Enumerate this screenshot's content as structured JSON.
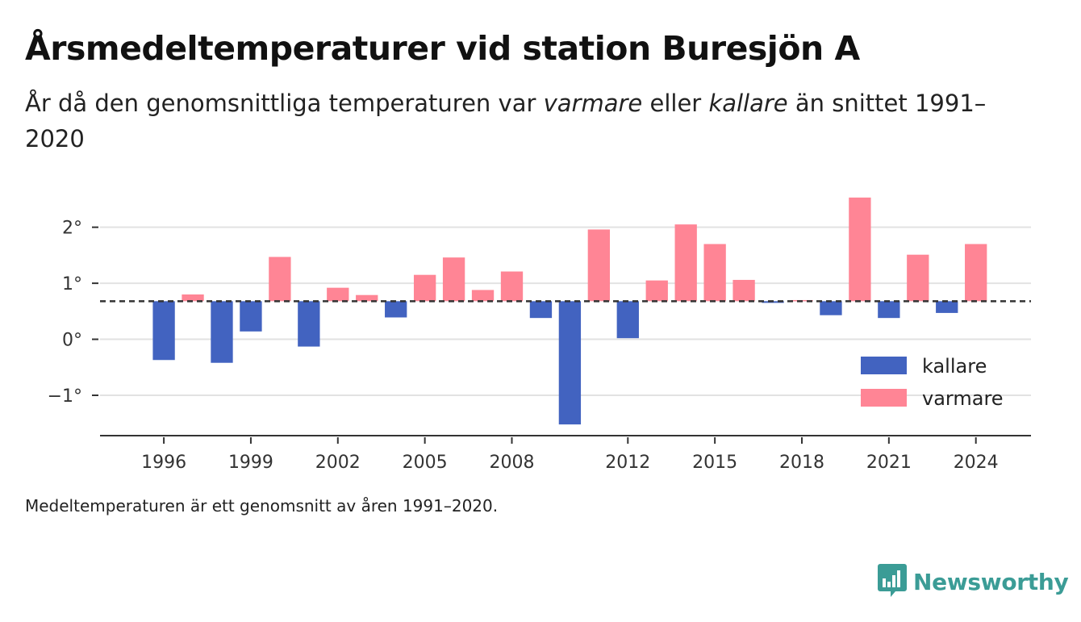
{
  "title": "Årsmedeltemperaturer vid station Buresjön A",
  "subtitle": {
    "part1": "År då den genomsnittliga temperaturen var ",
    "warm_word": "varmare",
    "part2": " eller ",
    "cold_word": "kallare",
    "part3": " än snittet 1991–2020"
  },
  "footnote": "Medeltemperaturen är ett genomsnitt av åren 1991–2020.",
  "brand": {
    "name": "Newsworthy",
    "icon": "newsworthy-logo-icon",
    "color": "#3b9c96"
  },
  "colors": {
    "cold": "#4263c0",
    "warm": "#ff8595",
    "grid": "#e2e2e2",
    "reference_line": "#333333",
    "axis": "#333333"
  },
  "chart_data": {
    "type": "bar",
    "title": "Årsmedeltemperaturer vid station Buresjön A",
    "xlabel": "",
    "ylabel": "",
    "reference_value": 0.68,
    "reference_label": "",
    "ylim": [
      -1.72,
      2.6
    ],
    "xlim": [
      1993.8,
      2025.9
    ],
    "yticks": [
      {
        "value": -1,
        "label": "−1°"
      },
      {
        "value": 0,
        "label": "0°"
      },
      {
        "value": 1,
        "label": "1°"
      },
      {
        "value": 2,
        "label": "2°"
      }
    ],
    "xticks": [
      {
        "value": 1996,
        "label": "1996"
      },
      {
        "value": 1999,
        "label": "1999"
      },
      {
        "value": 2002,
        "label": "2002"
      },
      {
        "value": 2005,
        "label": "2005"
      },
      {
        "value": 2008,
        "label": "2008"
      },
      {
        "value": 2012,
        "label": "2012"
      },
      {
        "value": 2015,
        "label": "2015"
      },
      {
        "value": 2018,
        "label": "2018"
      },
      {
        "value": 2021,
        "label": "2021"
      },
      {
        "value": 2024,
        "label": "2024"
      }
    ],
    "legend": {
      "position": "bottom-right",
      "items": [
        {
          "key": "cold",
          "label": "kallare"
        },
        {
          "key": "warm",
          "label": "varmare"
        }
      ]
    },
    "grid": true,
    "data": [
      {
        "year": 1996,
        "value": -0.37
      },
      {
        "year": 1997,
        "value": 0.8
      },
      {
        "year": 1998,
        "value": -0.42
      },
      {
        "year": 1999,
        "value": 0.14
      },
      {
        "year": 2000,
        "value": 1.47
      },
      {
        "year": 2001,
        "value": -0.13
      },
      {
        "year": 2002,
        "value": 0.92
      },
      {
        "year": 2003,
        "value": 0.79
      },
      {
        "year": 2004,
        "value": 0.39
      },
      {
        "year": 2005,
        "value": 1.15
      },
      {
        "year": 2006,
        "value": 1.46
      },
      {
        "year": 2007,
        "value": 0.88
      },
      {
        "year": 2008,
        "value": 1.21
      },
      {
        "year": 2009,
        "value": 0.38
      },
      {
        "year": 2010,
        "value": -1.52
      },
      {
        "year": 2011,
        "value": 1.96
      },
      {
        "year": 2012,
        "value": 0.02
      },
      {
        "year": 2013,
        "value": 1.05
      },
      {
        "year": 2014,
        "value": 2.05
      },
      {
        "year": 2015,
        "value": 1.7
      },
      {
        "year": 2016,
        "value": 1.06
      },
      {
        "year": 2017,
        "value": 0.65
      },
      {
        "year": 2018,
        "value": 0.7
      },
      {
        "year": 2019,
        "value": 0.43
      },
      {
        "year": 2020,
        "value": 2.53
      },
      {
        "year": 2021,
        "value": 0.38
      },
      {
        "year": 2022,
        "value": 1.51
      },
      {
        "year": 2023,
        "value": 0.47
      },
      {
        "year": 2024,
        "value": 1.7
      }
    ]
  }
}
